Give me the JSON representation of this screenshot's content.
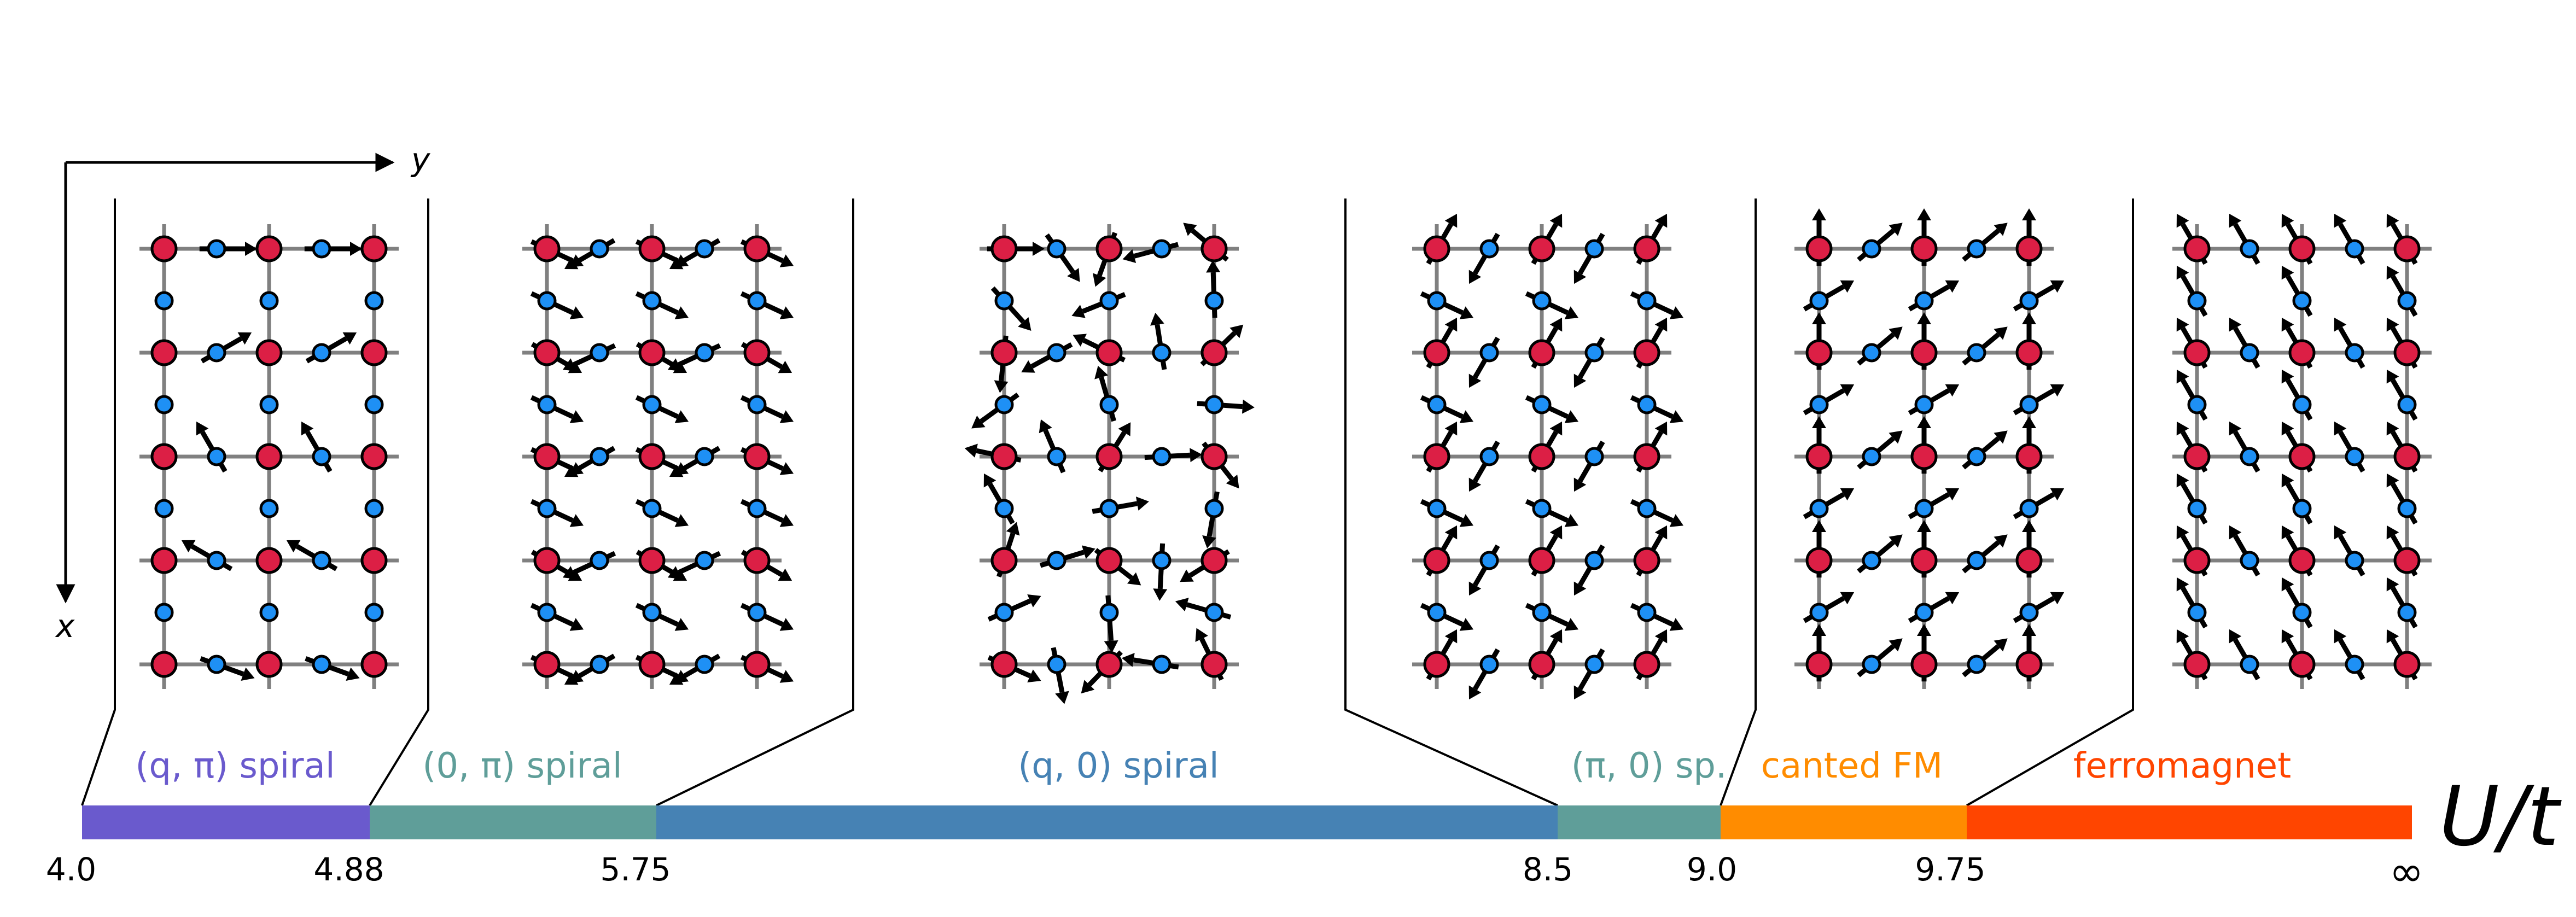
{
  "axes": {
    "x_letter": "x",
    "y_letter": "y"
  },
  "colors": {
    "site_large": "#dc1f45",
    "site_small": "#1e90f5",
    "bond_grid": "#808080",
    "spin_arrow": "#000000"
  },
  "phase_bar": {
    "axis_title": "U/t",
    "ticks": [
      "4.0",
      "4.88",
      "5.75",
      "8.5",
      "9.0",
      "9.75",
      "∞"
    ],
    "phases": [
      {
        "label": "(q, π) spiral",
        "color": "#6a5acd",
        "from": "4.0",
        "to": "4.88"
      },
      {
        "label": "(0, π) spiral",
        "color": "#5f9e99",
        "from": "4.88",
        "to": "5.75"
      },
      {
        "label": "(q, 0) spiral",
        "color": "#4682b4",
        "from": "5.75",
        "to": "8.5"
      },
      {
        "label": "(π, 0) sp.",
        "color": "#5f9e99",
        "from": "8.5",
        "to": "9.0"
      },
      {
        "label": "canted FM",
        "color": "#ff8c00",
        "from": "9.0",
        "to": "9.75"
      },
      {
        "label": "ferromagnet",
        "color": "#ff4500",
        "from": "9.75",
        "to": "∞"
      }
    ]
  },
  "spin_configurations": [
    {
      "phase": "(q, π) spiral"
    },
    {
      "phase": "(0, π) spiral"
    },
    {
      "phase": "(q, 0) spiral"
    },
    {
      "phase": "(π, 0) sp."
    },
    {
      "phase": "canted FM"
    },
    {
      "phase": "ferromagnet"
    }
  ]
}
